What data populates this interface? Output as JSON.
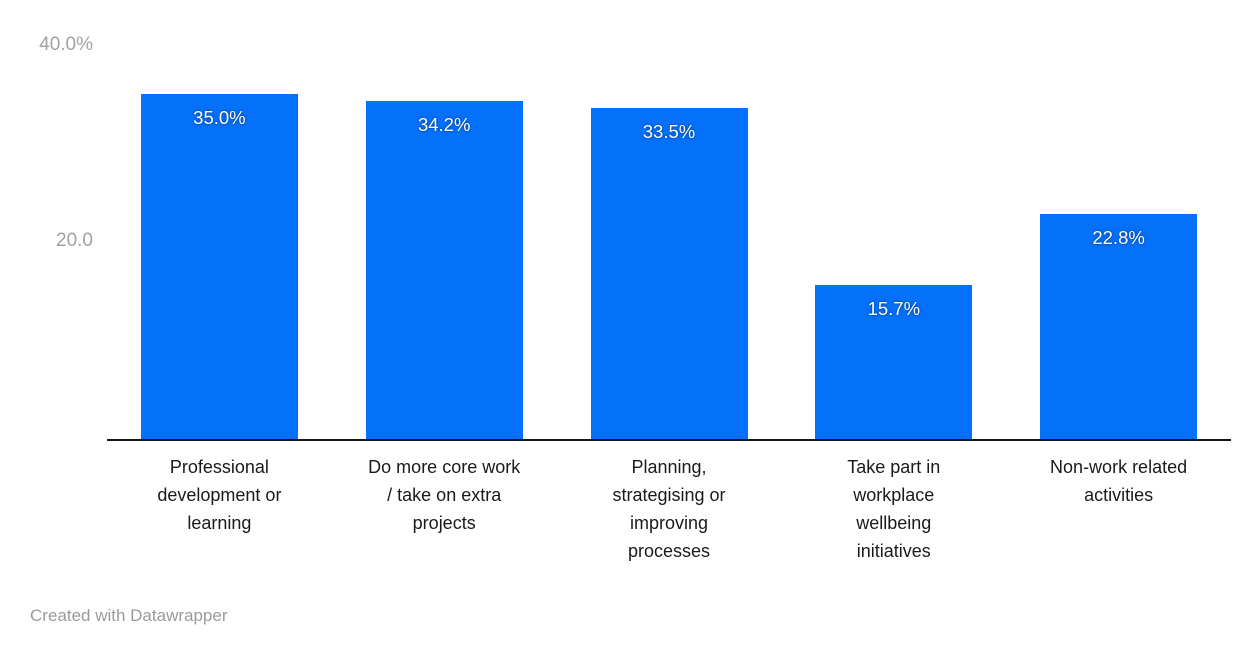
{
  "chart_data": {
    "type": "bar",
    "title": "",
    "xlabel": "",
    "ylabel": "",
    "ylim": [
      0,
      40
    ],
    "grid": false,
    "legend": false,
    "bar_color": "#0571fa",
    "categories": [
      "Professional development or learning",
      "Do more core work / take on extra projects",
      "Planning, strategising or improving processes",
      "Take part in workplace wellbeing initiatives",
      "Non-work related activities"
    ],
    "category_lines": [
      [
        "Professional",
        "development or",
        "learning"
      ],
      [
        "Do more core work",
        "/ take on extra",
        "projects"
      ],
      [
        "Planning,",
        "strategising or",
        "improving",
        "processes"
      ],
      [
        "Take part in",
        "workplace",
        "wellbeing",
        "initiatives"
      ],
      [
        "Non-work related",
        "activities"
      ]
    ],
    "values": [
      35.0,
      34.2,
      33.5,
      15.7,
      22.8
    ],
    "value_labels": [
      "35.0%",
      "34.2%",
      "33.5%",
      "15.7%",
      "22.8%"
    ],
    "y_axis_ticks": [
      {
        "value": 40,
        "label": "40.0%"
      },
      {
        "value": 20,
        "label": "20.0"
      }
    ]
  },
  "footer": {
    "attribution": "Created with Datawrapper"
  },
  "colors": {
    "bar": "#0571fa",
    "axis_line": "#161616",
    "tick_label": "#a2a2a2",
    "category_label": "#1a1a1a",
    "value_label": "#ffffff",
    "footer_text": "#9b9b9b",
    "background": "#ffffff"
  }
}
